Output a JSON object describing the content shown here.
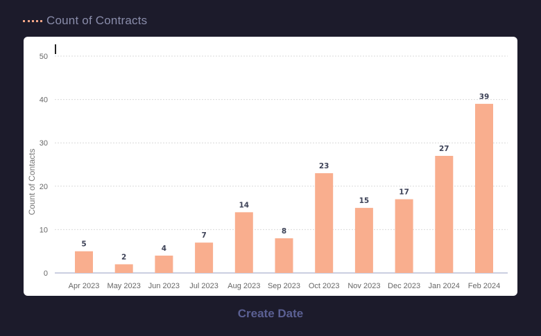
{
  "legend": {
    "label": "Count of Contracts",
    "color": "#f4a688"
  },
  "xtitle": "Create Date",
  "chart_data": {
    "type": "bar",
    "categories": [
      "Apr 2023",
      "May 2023",
      "Jun 2023",
      "Jul 2023",
      "Aug 2023",
      "Sep 2023",
      "Oct 2023",
      "Nov 2023",
      "Dec 2023",
      "Jan 2024",
      "Feb 2024"
    ],
    "series": [
      {
        "name": "Count of Contracts",
        "values": [
          5,
          2,
          4,
          7,
          14,
          8,
          23,
          15,
          17,
          27,
          39
        ]
      }
    ],
    "ylabel": "Count of Contacts",
    "xlabel": "Create Date",
    "ylim": [
      0,
      50
    ],
    "yticks": [
      0,
      10,
      20,
      30,
      40,
      50
    ],
    "grid": true,
    "legend_position": "top-left",
    "bar_color": "#f9ae8e"
  }
}
